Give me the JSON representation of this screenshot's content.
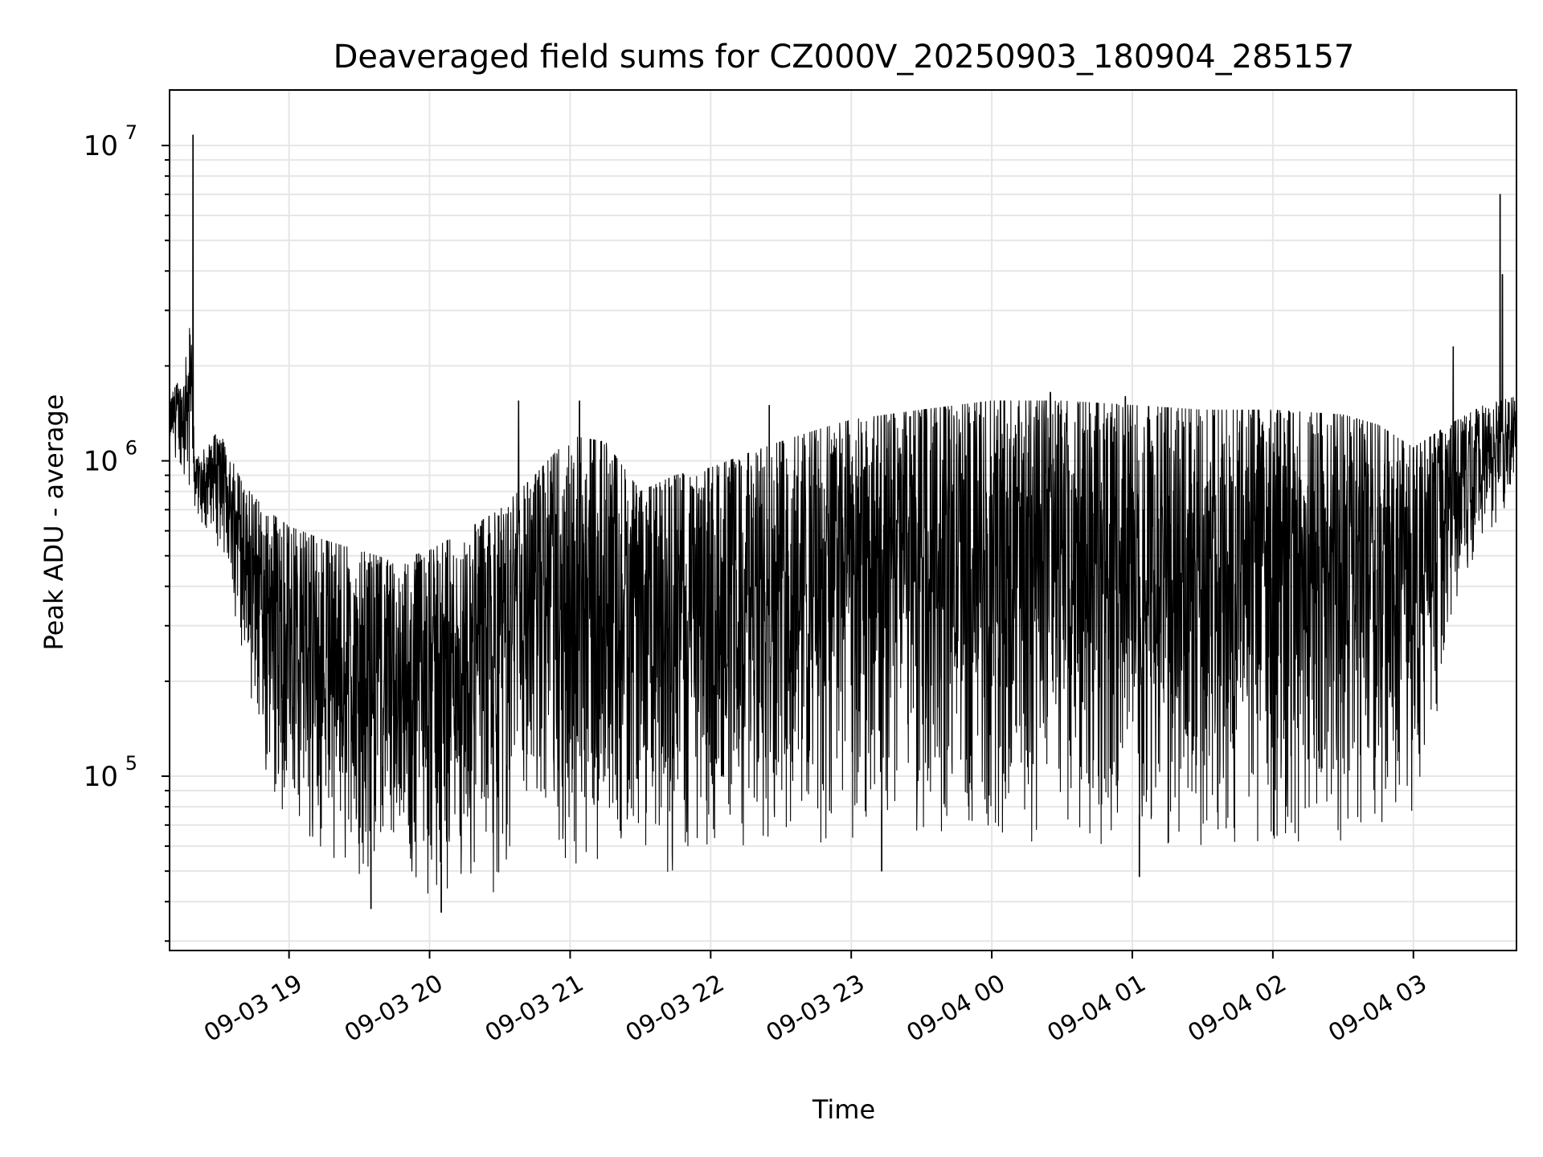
{
  "chart_data": {
    "type": "line",
    "title": "Deaveraged field sums for CZ000V_20250903_180904_285157",
    "xlabel": "Time",
    "ylabel": "Peak ADU - average",
    "yscale": "log",
    "ylim": [
      28000,
      15000000
    ],
    "xlim": [
      "2025-09-03 18:09",
      "2025-09-04 03:44"
    ],
    "grid": true,
    "legend": "none",
    "line_color": "#000000",
    "grid_color": "#e6e6e6",
    "x_ticks": [
      {
        "t": "2025-09-03 19:00",
        "label": "09-03 19"
      },
      {
        "t": "2025-09-03 20:00",
        "label": "09-03 20"
      },
      {
        "t": "2025-09-03 21:00",
        "label": "09-03 21"
      },
      {
        "t": "2025-09-03 22:00",
        "label": "09-03 22"
      },
      {
        "t": "2025-09-03 23:00",
        "label": "09-03 23"
      },
      {
        "t": "2025-09-04 00:00",
        "label": "09-04 00"
      },
      {
        "t": "2025-09-04 01:00",
        "label": "09-04 01"
      },
      {
        "t": "2025-09-04 02:00",
        "label": "09-04 02"
      },
      {
        "t": "2025-09-04 03:00",
        "label": "09-04 03"
      }
    ],
    "y_ticks": [
      {
        "value": 100000,
        "base": "10",
        "exp": "5"
      },
      {
        "value": 1000000,
        "base": "10",
        "exp": "6"
      },
      {
        "value": 10000000,
        "base": "10",
        "exp": "7"
      }
    ],
    "envelope": {
      "description_of_series": "time series of field sums; value oscillates rapidly between the lower and upper envelopes below",
      "upper": [
        [
          "2025-09-03 18:09",
          1600000
        ],
        [
          "2025-09-03 18:15",
          1900000
        ],
        [
          "2025-09-03 18:18",
          2800000
        ],
        [
          "2025-09-03 18:20",
          1000000
        ],
        [
          "2025-09-03 18:30",
          1250000
        ],
        [
          "2025-09-03 18:40",
          850000
        ],
        [
          "2025-09-03 18:50",
          700000
        ],
        [
          "2025-09-03 19:00",
          620000
        ],
        [
          "2025-09-03 19:15",
          560000
        ],
        [
          "2025-09-03 19:30",
          520000
        ],
        [
          "2025-09-03 19:45",
          480000
        ],
        [
          "2025-09-03 20:00",
          520000
        ],
        [
          "2025-09-03 20:15",
          600000
        ],
        [
          "2025-09-03 20:30",
          700000
        ],
        [
          "2025-09-03 20:45",
          900000
        ],
        [
          "2025-09-03 21:00",
          1200000
        ],
        [
          "2025-09-03 21:15",
          1150000
        ],
        [
          "2025-09-03 21:30",
          800000
        ],
        [
          "2025-09-03 21:45",
          900000
        ],
        [
          "2025-09-03 22:00",
          950000
        ],
        [
          "2025-09-03 22:15",
          1050000
        ],
        [
          "2025-09-03 22:30",
          1150000
        ],
        [
          "2025-09-03 22:45",
          1250000
        ],
        [
          "2025-09-03 23:00",
          1350000
        ],
        [
          "2025-09-03 23:30",
          1450000
        ],
        [
          "2025-09-04 00:00",
          1550000
        ],
        [
          "2025-09-04 00:30",
          1550000
        ],
        [
          "2025-09-04 01:00",
          1500000
        ],
        [
          "2025-09-04 01:30",
          1450000
        ],
        [
          "2025-09-04 02:00",
          1450000
        ],
        [
          "2025-09-04 02:30",
          1400000
        ],
        [
          "2025-09-04 02:45",
          1300000
        ],
        [
          "2025-09-04 03:00",
          1100000
        ],
        [
          "2025-09-04 03:15",
          1300000
        ],
        [
          "2025-09-04 03:30",
          1500000
        ],
        [
          "2025-09-04 03:44",
          1600000
        ]
      ],
      "lower": [
        [
          "2025-09-03 18:09",
          1000000
        ],
        [
          "2025-09-03 18:20",
          700000
        ],
        [
          "2025-09-03 18:30",
          500000
        ],
        [
          "2025-09-03 18:40",
          250000
        ],
        [
          "2025-09-03 18:50",
          100000
        ],
        [
          "2025-09-03 19:00",
          70000
        ],
        [
          "2025-09-03 19:15",
          55000
        ],
        [
          "2025-09-03 19:30",
          48000
        ],
        [
          "2025-09-03 19:45",
          44000
        ],
        [
          "2025-09-03 20:00",
          42000
        ],
        [
          "2025-09-03 20:15",
          41000
        ],
        [
          "2025-09-03 20:30",
          42000
        ],
        [
          "2025-09-03 20:40",
          90000
        ],
        [
          "2025-09-03 20:50",
          80000
        ],
        [
          "2025-09-03 21:00",
          50000
        ],
        [
          "2025-09-03 21:15",
          50000
        ],
        [
          "2025-09-03 21:30",
          60000
        ],
        [
          "2025-09-03 21:40",
          45000
        ],
        [
          "2025-09-03 22:00",
          60000
        ],
        [
          "2025-09-03 22:30",
          60000
        ],
        [
          "2025-09-03 23:00",
          62000
        ],
        [
          "2025-09-03 23:30",
          62000
        ],
        [
          "2025-09-04 00:00",
          62000
        ],
        [
          "2025-09-04 00:30",
          60000
        ],
        [
          "2025-09-04 01:00",
          60000
        ],
        [
          "2025-09-04 01:30",
          60000
        ],
        [
          "2025-09-04 02:00",
          62000
        ],
        [
          "2025-09-04 02:30",
          62000
        ],
        [
          "2025-09-04 03:00",
          75000
        ],
        [
          "2025-09-04 03:10",
          150000
        ],
        [
          "2025-09-04 03:20",
          400000
        ],
        [
          "2025-09-04 03:30",
          550000
        ],
        [
          "2025-09-04 03:44",
          800000
        ]
      ]
    },
    "spikes": [
      {
        "t": "2025-09-03 18:19",
        "value": 10800000
      },
      {
        "t": "2025-09-04 03:37",
        "value": 7000000
      },
      {
        "t": "2025-09-04 03:38",
        "value": 3900000
      },
      {
        "t": "2025-09-03 20:38",
        "value": 1550000
      },
      {
        "t": "2025-09-03 21:04",
        "value": 1550000
      },
      {
        "t": "2025-09-03 22:25",
        "value": 1500000
      },
      {
        "t": "2025-09-04 00:25",
        "value": 1650000
      },
      {
        "t": "2025-09-04 00:57",
        "value": 1600000
      },
      {
        "t": "2025-09-04 03:17",
        "value": 2300000
      },
      {
        "t": "2025-09-04 01:03",
        "value": 48000
      },
      {
        "t": "2025-09-03 23:13",
        "value": 50000
      },
      {
        "t": "2025-09-03 19:35",
        "value": 38000
      },
      {
        "t": "2025-09-03 20:05",
        "value": 37000
      }
    ]
  }
}
